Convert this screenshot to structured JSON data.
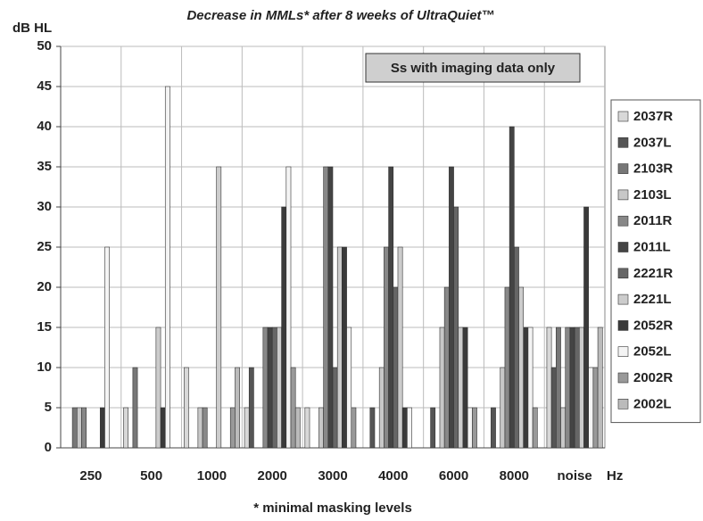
{
  "chart_data": {
    "type": "bar",
    "title": "Decrease in MMLs* after 8 weeks of UltraQuiet™",
    "y_label": "dB HL",
    "x_unit": "Hz",
    "footnote": "* minimal masking levels",
    "annotation": "Ss with imaging data only",
    "categories": [
      "250",
      "500",
      "1000",
      "2000",
      "3000",
      "4000",
      "6000",
      "8000",
      "noise"
    ],
    "series": [
      {
        "name": "2037R",
        "color": "#d8d8d8",
        "values": [
          0,
          5,
          10,
          5,
          5,
          0,
          0,
          0,
          15
        ]
      },
      {
        "name": "2037L",
        "color": "#555555",
        "values": [
          0,
          0,
          0,
          10,
          0,
          5,
          5,
          5,
          10
        ]
      },
      {
        "name": "2103R",
        "color": "#777777",
        "values": [
          5,
          10,
          0,
          0,
          0,
          0,
          0,
          0,
          15
        ]
      },
      {
        "name": "2103L",
        "color": "#c8c8c8",
        "values": [
          5,
          0,
          5,
          0,
          5,
          10,
          15,
          10,
          5
        ]
      },
      {
        "name": "2011R",
        "color": "#888888",
        "values": [
          5,
          0,
          5,
          15,
          35,
          25,
          20,
          20,
          15
        ]
      },
      {
        "name": "2011L",
        "color": "#444444",
        "values": [
          0,
          0,
          0,
          15,
          35,
          35,
          35,
          40,
          15
        ]
      },
      {
        "name": "2221R",
        "color": "#666666",
        "values": [
          0,
          0,
          0,
          15,
          10,
          20,
          30,
          25,
          15
        ]
      },
      {
        "name": "2221L",
        "color": "#cccccc",
        "values": [
          0,
          15,
          35,
          15,
          25,
          25,
          15,
          20,
          15
        ]
      },
      {
        "name": "2052R",
        "color": "#3a3a3a",
        "values": [
          5,
          5,
          0,
          30,
          25,
          5,
          15,
          15,
          30
        ]
      },
      {
        "name": "2052L",
        "color": "#f4f4f4",
        "values": [
          25,
          45,
          0,
          35,
          15,
          5,
          5,
          15,
          10
        ]
      },
      {
        "name": "2002R",
        "color": "#999999",
        "values": [
          0,
          0,
          5,
          10,
          5,
          0,
          5,
          5,
          10
        ]
      },
      {
        "name": "2002L",
        "color": "#bbbbbb",
        "values": [
          0,
          0,
          10,
          5,
          0,
          0,
          0,
          0,
          15
        ]
      }
    ],
    "ylim": [
      0,
      50
    ],
    "yticks": [
      0,
      5,
      10,
      15,
      20,
      25,
      30,
      35,
      40,
      45,
      50
    ],
    "grid": true,
    "legend": "right"
  }
}
